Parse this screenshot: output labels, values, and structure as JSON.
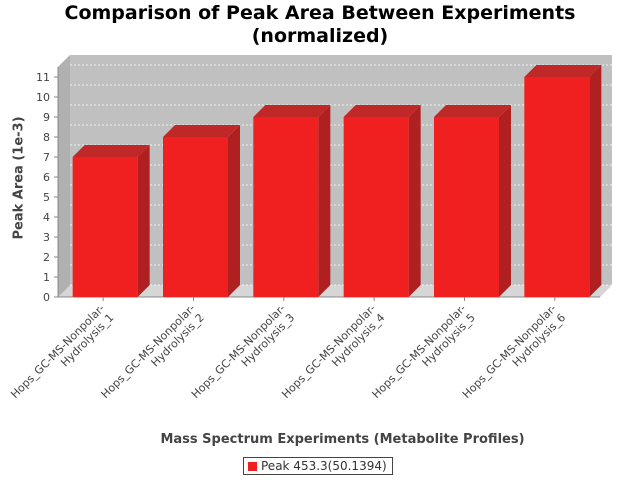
{
  "chart_data": {
    "type": "bar",
    "title": "Comparison of Peak Area Between Experiments\n(normalized)",
    "xlabel": "Mass Spectrum Experiments (Metabolite Profiles)",
    "ylabel": "Peak Area (1e-3)",
    "categories": [
      "Hops_GC-MS-Nonpolar-Hydrolysis_1",
      "Hops_GC-MS-Nonpolar-Hydrolysis_2",
      "Hops_GC-MS-Nonpolar-Hydrolysis_3",
      "Hops_GC-MS-Nonpolar-Hydrolysis_4",
      "Hops_GC-MS-Nonpolar-Hydrolysis_5",
      "Hops_GC-MS-Nonpolar-Hydrolysis_6"
    ],
    "series": [
      {
        "name": "Peak 453.3(50.1394)",
        "values": [
          7,
          8,
          9,
          9,
          9,
          11
        ]
      }
    ],
    "yticks": [
      0,
      1,
      2,
      3,
      4,
      5,
      6,
      7,
      8,
      9,
      10,
      11
    ],
    "ylim": [
      0,
      11.5
    ],
    "grid": true,
    "legend_position": "bottom",
    "bar_color": "#f02020",
    "plot_background": "#c0c0c0"
  }
}
